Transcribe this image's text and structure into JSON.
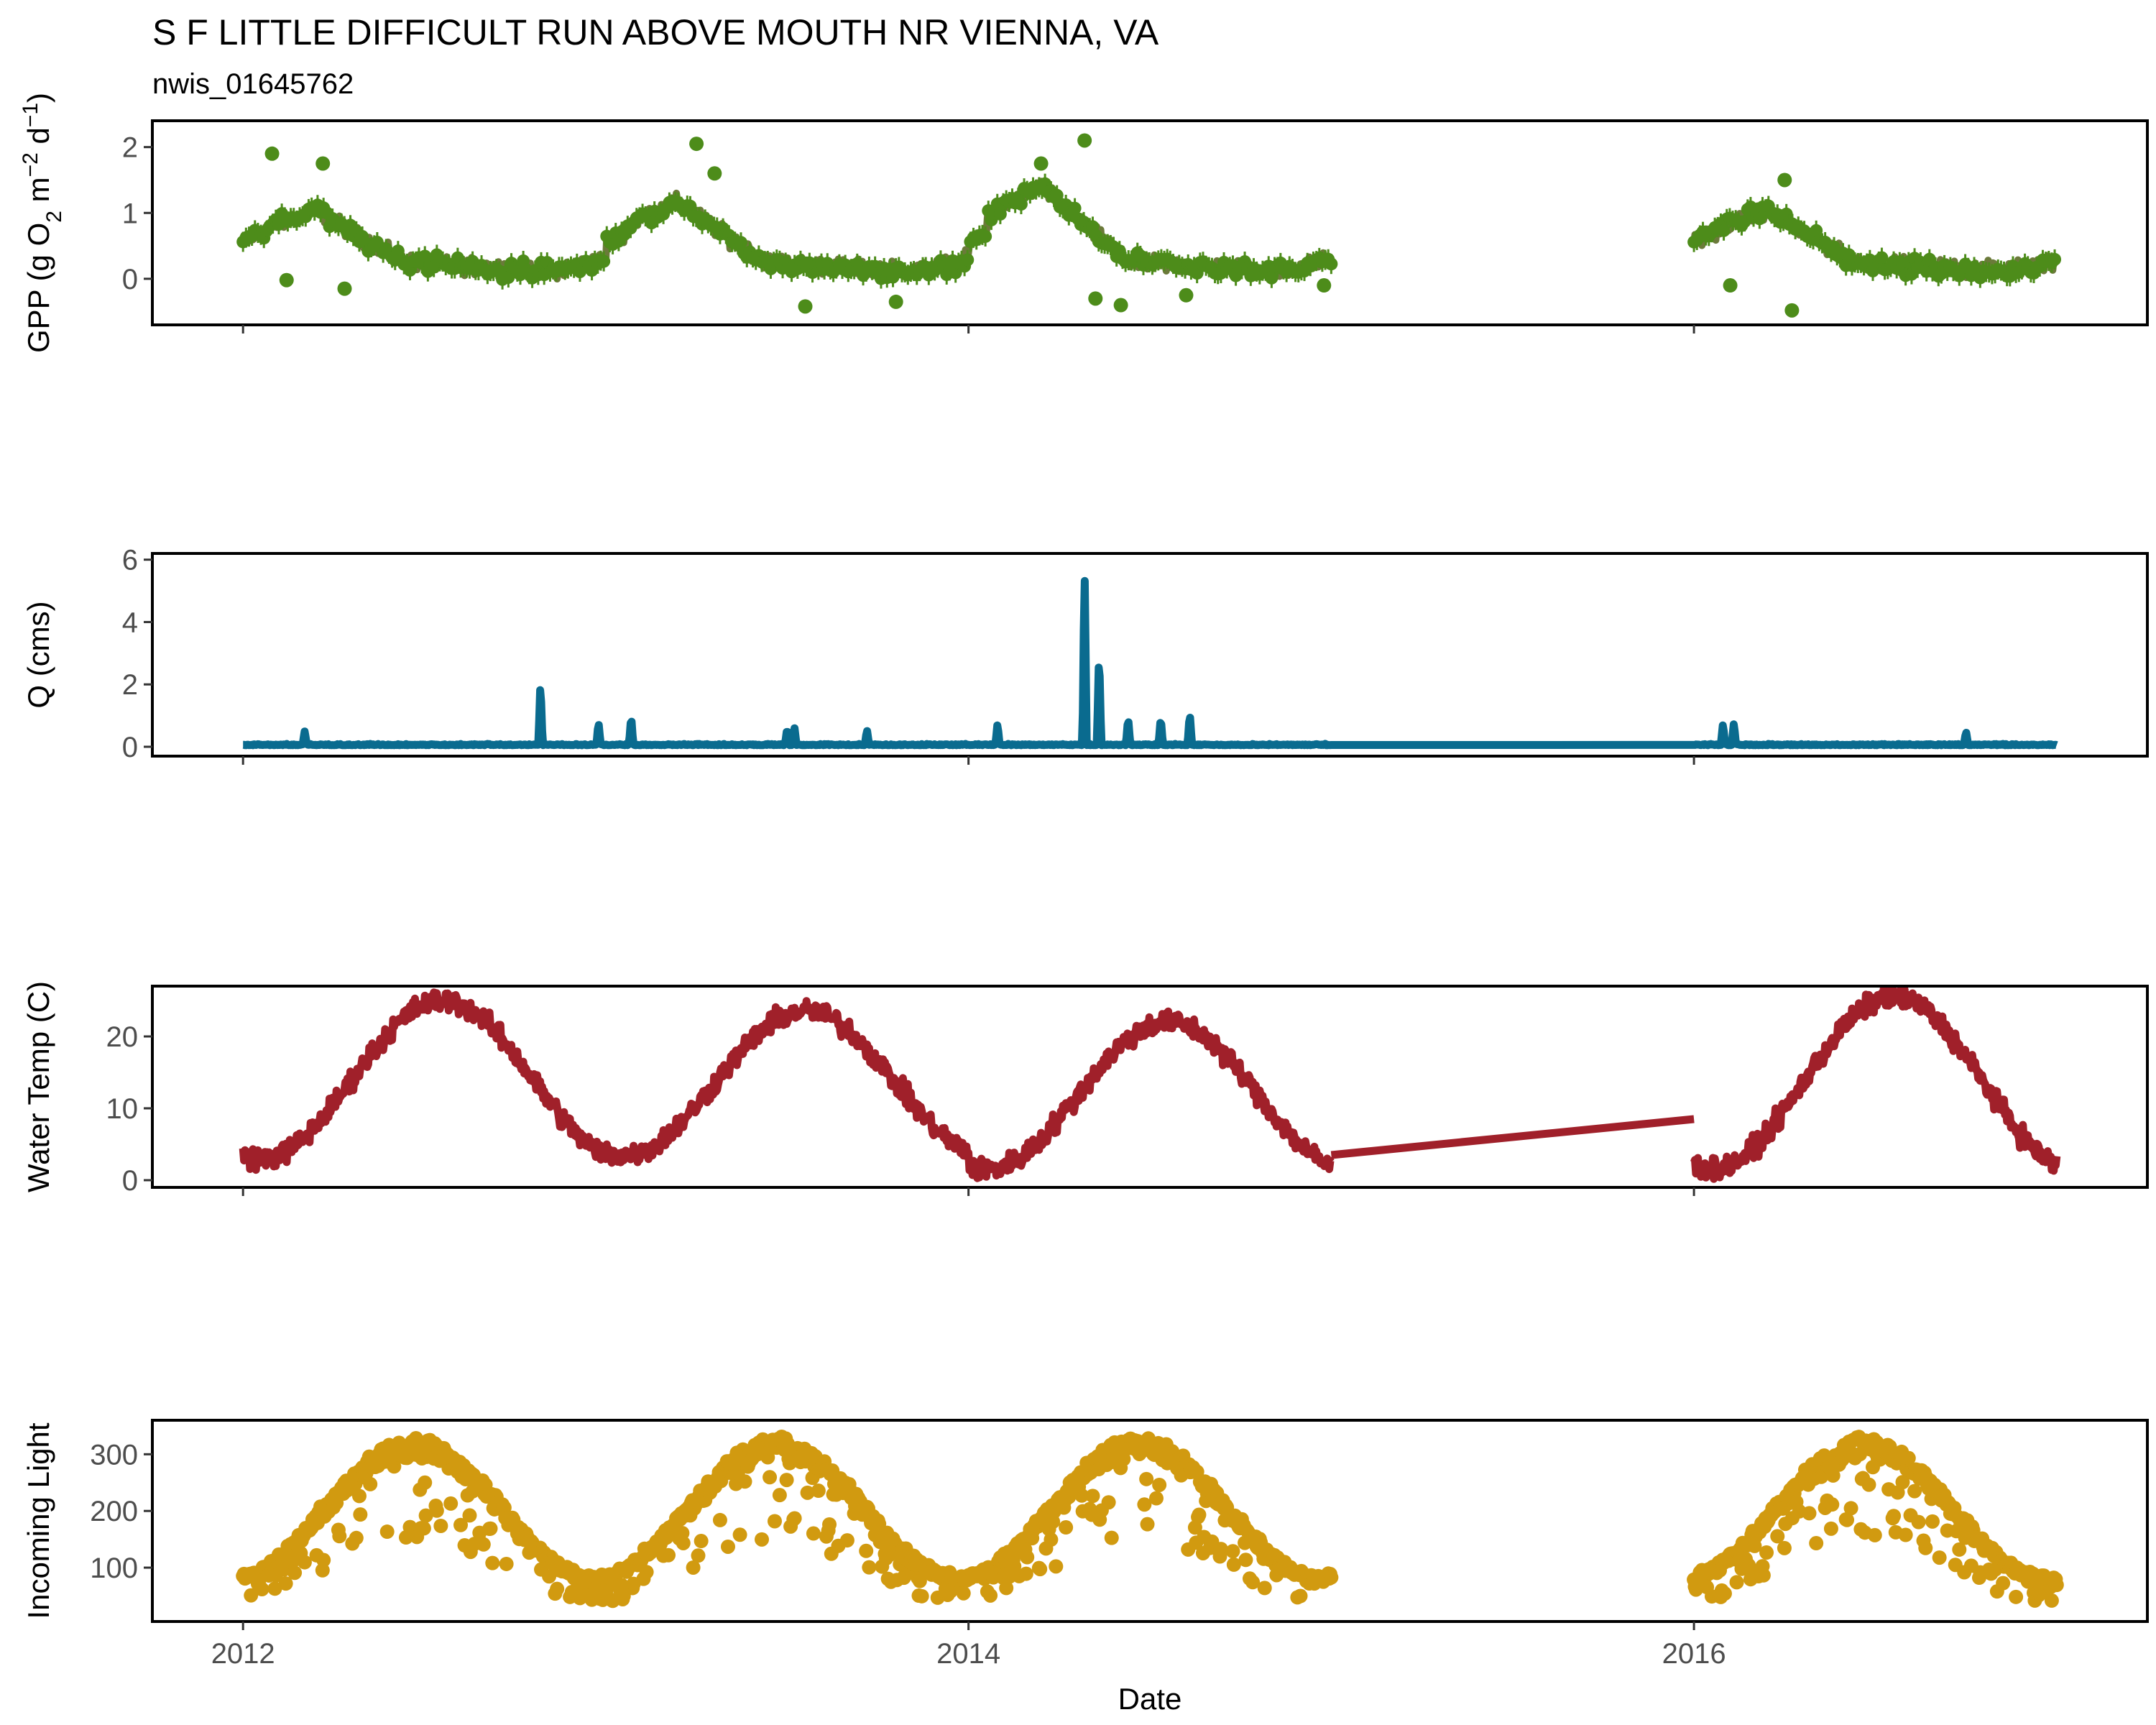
{
  "chart_data": {
    "type": "multi-panel time series",
    "title": "S F LITTLE DIFFICULT RUN ABOVE MOUTH NR VIENNA, VA",
    "subtitle": "nwis_01645762",
    "xlabel": "Date",
    "x_ticks": [
      "2012",
      "2014",
      "2016"
    ],
    "x_range": [
      2011.75,
      2017.25
    ],
    "panels": [
      {
        "id": "gpp",
        "type": "scatter-line",
        "ylabel": "GPP (g  O2 m-2 d-1)",
        "ylabel_parts": [
          "GPP (g  O",
          "2",
          " m",
          "−2",
          " d",
          "−1",
          ")"
        ],
        "color": "#4d8c1a",
        "ylim": [
          -0.7,
          2.4
        ],
        "y_ticks": [
          0,
          1,
          2
        ],
        "segments": [
          [
            2012.0,
            2015.0
          ],
          [
            2016.0,
            2017.0
          ]
        ],
        "seasonal": [
          [
            0.0,
            0.55
          ],
          [
            0.08,
            0.8
          ],
          [
            0.2,
            1.05
          ],
          [
            0.33,
            0.6
          ],
          [
            0.45,
            0.25
          ],
          [
            0.65,
            0.18
          ],
          [
            0.85,
            0.12
          ],
          [
            0.95,
            0.22
          ],
          [
            1.0,
            0.3
          ]
        ],
        "peak_scale": [
          1.0,
          1.15,
          1.45,
          1.0,
          1.0
        ],
        "series": [
          {
            "x": 2012.08,
            "y": 1.9
          },
          {
            "x": 2012.12,
            "y": -0.02
          },
          {
            "x": 2012.22,
            "y": 1.75
          },
          {
            "x": 2012.28,
            "y": -0.15
          },
          {
            "x": 2013.25,
            "y": 2.05
          },
          {
            "x": 2013.3,
            "y": 1.6
          },
          {
            "x": 2013.55,
            "y": -0.42
          },
          {
            "x": 2013.8,
            "y": -0.35
          },
          {
            "x": 2014.2,
            "y": 1.75
          },
          {
            "x": 2014.32,
            "y": 2.1
          },
          {
            "x": 2014.35,
            "y": -0.3
          },
          {
            "x": 2014.42,
            "y": -0.4
          },
          {
            "x": 2014.6,
            "y": -0.25
          },
          {
            "x": 2014.98,
            "y": -0.1
          },
          {
            "x": 2016.1,
            "y": -0.1
          },
          {
            "x": 2016.25,
            "y": 1.5
          },
          {
            "x": 2016.27,
            "y": -0.48
          }
        ]
      },
      {
        "id": "q",
        "type": "line",
        "ylabel": "Q (cms)",
        "color": "#0a6b8f",
        "ylim": [
          -0.3,
          6.2
        ],
        "y_ticks": [
          0,
          2,
          4,
          6
        ],
        "baseline": 0.05,
        "spikes": [
          {
            "x": 2012.17,
            "y": 0.45
          },
          {
            "x": 2012.82,
            "y": 2.05
          },
          {
            "x": 2012.98,
            "y": 0.75
          },
          {
            "x": 2013.07,
            "y": 0.95
          },
          {
            "x": 2013.5,
            "y": 0.55
          },
          {
            "x": 2013.52,
            "y": 0.6
          },
          {
            "x": 2013.72,
            "y": 0.5
          },
          {
            "x": 2014.08,
            "y": 0.7
          },
          {
            "x": 2014.32,
            "y": 5.8
          },
          {
            "x": 2014.36,
            "y": 3.05
          },
          {
            "x": 2014.44,
            "y": 0.9
          },
          {
            "x": 2014.53,
            "y": 0.9
          },
          {
            "x": 2014.61,
            "y": 1.05
          },
          {
            "x": 2016.08,
            "y": 0.7
          },
          {
            "x": 2016.11,
            "y": 0.72
          },
          {
            "x": 2016.75,
            "y": 0.45
          }
        ]
      },
      {
        "id": "temp",
        "type": "line",
        "ylabel": "Water Temp (C)",
        "color": "#a0202a",
        "ylim": [
          -1.0,
          27.0
        ],
        "y_ticks": [
          0,
          10,
          20
        ],
        "segments": [
          [
            2012.0,
            2015.0
          ],
          [
            2016.0,
            2017.0
          ]
        ],
        "gap_line": [
          [
            2015.0,
            3.5
          ],
          [
            2016.0,
            8.5
          ]
        ],
        "seasonal_peak": [
          25.0,
          23.5,
          22.0,
          null,
          25.5
        ],
        "seasonal_trough": [
          3.0,
          3.5,
          1.5,
          null,
          1.5
        ]
      },
      {
        "id": "light",
        "type": "scatter",
        "ylabel": "Incoming Light",
        "color": "#d19a10",
        "ylim": [
          5,
          360
        ],
        "y_ticks": [
          100,
          200,
          300
        ],
        "segments": [
          [
            2012.0,
            2015.0
          ],
          [
            2016.0,
            2017.0
          ]
        ],
        "seasonal_max": 330,
        "seasonal_min": 85
      }
    ]
  }
}
